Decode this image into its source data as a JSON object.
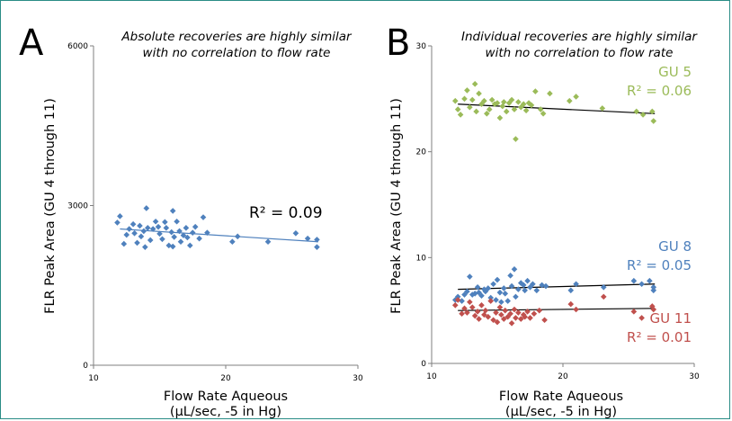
{
  "colors": {
    "blue": "#4f81bd",
    "green": "#9bbb59",
    "red": "#c0504d",
    "fit_black": "#000000",
    "frame": "#2a8c86"
  },
  "chart_data": [
    {
      "type": "scatter",
      "panel": "A",
      "subtitle_line1": "Absolute recoveries are highly similar",
      "subtitle_line2": "with no correlation to flow rate",
      "xlabel_line1": "Flow Rate Aqueous",
      "xlabel_line2": "(μL/sec, -5 in Hg)",
      "ylabel": "FLR Peak Area (GU 4 through 11)",
      "xlim": [
        10,
        30
      ],
      "ylim": [
        0,
        6000
      ],
      "xticks": [
        "10",
        "20",
        "30"
      ],
      "yticks": [
        "0",
        "3000",
        "6000"
      ],
      "grid": false,
      "series": [
        {
          "color": "#4f81bd",
          "annotation": "R² = 0.09",
          "fit": [
            [
              12,
              2560
            ],
            [
              27,
              2320
            ]
          ],
          "points": [
            [
              12.0,
              2800
            ],
            [
              11.8,
              2680
            ],
            [
              12.3,
              2280
            ],
            [
              12.5,
              2450
            ],
            [
              12.7,
              2560
            ],
            [
              13.0,
              2650
            ],
            [
              13.1,
              2480
            ],
            [
              13.3,
              2300
            ],
            [
              13.5,
              2620
            ],
            [
              13.6,
              2420
            ],
            [
              13.8,
              2520
            ],
            [
              14.0,
              2950
            ],
            [
              14.1,
              2580
            ],
            [
              14.3,
              2350
            ],
            [
              14.5,
              2560
            ],
            [
              14.7,
              2700
            ],
            [
              14.9,
              2600
            ],
            [
              15.0,
              2470
            ],
            [
              15.2,
              2370
            ],
            [
              15.4,
              2690
            ],
            [
              15.5,
              2580
            ],
            [
              15.7,
              2250
            ],
            [
              15.9,
              2500
            ],
            [
              16.0,
              2900
            ],
            [
              16.1,
              2410
            ],
            [
              16.3,
              2700
            ],
            [
              16.5,
              2520
            ],
            [
              16.6,
              2320
            ],
            [
              16.8,
              2440
            ],
            [
              17.0,
              2580
            ],
            [
              17.1,
              2400
            ],
            [
              17.3,
              2250
            ],
            [
              17.5,
              2490
            ],
            [
              17.7,
              2600
            ],
            [
              18.0,
              2380
            ],
            [
              18.3,
              2780
            ],
            [
              18.6,
              2490
            ],
            [
              20.5,
              2320
            ],
            [
              20.9,
              2420
            ],
            [
              23.2,
              2320
            ],
            [
              25.3,
              2480
            ],
            [
              26.2,
              2380
            ],
            [
              26.9,
              2360
            ],
            [
              26.9,
              2220
            ],
            [
              16.0,
              2230
            ],
            [
              13.9,
              2220
            ]
          ]
        }
      ]
    },
    {
      "type": "scatter",
      "panel": "B",
      "subtitle_line1": "Individual recoveries are highly similar",
      "subtitle_line2": "with no correlation to flow rate",
      "xlabel_line1": "Flow Rate Aqueous",
      "xlabel_line2": "(μL/sec, -5 in Hg)",
      "ylabel": "FLR Peak Area (GU 4 through 11)",
      "xlim": [
        10,
        30
      ],
      "ylim": [
        0,
        30
      ],
      "xticks": [
        "10",
        "20",
        "30"
      ],
      "yticks": [
        "0",
        "10",
        "20",
        "30"
      ],
      "grid": false,
      "series": [
        {
          "name": "GU 5",
          "color": "#9bbb59",
          "annotation": "R² = 0.06",
          "fit": [
            [
              12,
              24.5
            ],
            [
              27,
              23.6
            ]
          ],
          "points": [
            [
              11.8,
              24.8
            ],
            [
              12.0,
              24.0
            ],
            [
              12.2,
              23.5
            ],
            [
              12.5,
              25.0
            ],
            [
              12.7,
              25.8
            ],
            [
              12.9,
              24.2
            ],
            [
              13.1,
              24.9
            ],
            [
              13.3,
              26.4
            ],
            [
              13.4,
              23.8
            ],
            [
              13.6,
              25.5
            ],
            [
              13.8,
              24.5
            ],
            [
              14.0,
              24.8
            ],
            [
              14.2,
              23.6
            ],
            [
              14.4,
              24.0
            ],
            [
              14.6,
              24.9
            ],
            [
              14.8,
              24.5
            ],
            [
              15.0,
              24.6
            ],
            [
              15.2,
              23.2
            ],
            [
              15.4,
              24.3
            ],
            [
              15.5,
              24.7
            ],
            [
              15.7,
              23.8
            ],
            [
              15.9,
              24.6
            ],
            [
              16.1,
              24.9
            ],
            [
              16.3,
              24.0
            ],
            [
              16.4,
              21.2
            ],
            [
              16.6,
              24.7
            ],
            [
              16.8,
              24.2
            ],
            [
              17.0,
              24.5
            ],
            [
              17.2,
              23.9
            ],
            [
              17.4,
              24.6
            ],
            [
              17.6,
              24.4
            ],
            [
              17.9,
              25.7
            ],
            [
              18.3,
              24.0
            ],
            [
              18.5,
              23.6
            ],
            [
              19.0,
              25.5
            ],
            [
              20.5,
              24.8
            ],
            [
              21.0,
              25.2
            ],
            [
              23.0,
              24.1
            ],
            [
              25.6,
              23.8
            ],
            [
              26.1,
              23.5
            ],
            [
              26.8,
              23.8
            ],
            [
              26.9,
              22.9
            ]
          ]
        },
        {
          "name": "GU 8",
          "color": "#4f81bd",
          "annotation": "R² = 0.05",
          "fit": [
            [
              12,
              7.0
            ],
            [
              27,
              7.5
            ]
          ],
          "points": [
            [
              11.8,
              6.0
            ],
            [
              12.0,
              6.3
            ],
            [
              12.3,
              5.9
            ],
            [
              12.5,
              6.5
            ],
            [
              12.7,
              6.8
            ],
            [
              12.9,
              8.2
            ],
            [
              13.1,
              6.5
            ],
            [
              13.3,
              6.6
            ],
            [
              13.5,
              7.2
            ],
            [
              13.6,
              6.7
            ],
            [
              13.8,
              6.4
            ],
            [
              14.0,
              7.0
            ],
            [
              14.1,
              6.8
            ],
            [
              14.3,
              7.1
            ],
            [
              14.5,
              6.2
            ],
            [
              14.7,
              7.5
            ],
            [
              14.9,
              6.0
            ],
            [
              15.0,
              7.9
            ],
            [
              15.2,
              6.7
            ],
            [
              15.3,
              5.8
            ],
            [
              15.5,
              7.1
            ],
            [
              15.6,
              6.6
            ],
            [
              15.8,
              5.9
            ],
            [
              16.0,
              8.3
            ],
            [
              16.1,
              7.3
            ],
            [
              16.3,
              8.9
            ],
            [
              16.4,
              6.3
            ],
            [
              16.6,
              7.0
            ],
            [
              16.8,
              7.6
            ],
            [
              17.0,
              7.4
            ],
            [
              17.1,
              6.9
            ],
            [
              17.3,
              7.8
            ],
            [
              17.5,
              7.2
            ],
            [
              17.7,
              7.5
            ],
            [
              18.0,
              6.9
            ],
            [
              18.4,
              7.4
            ],
            [
              18.7,
              7.3
            ],
            [
              20.6,
              6.9
            ],
            [
              21.0,
              7.5
            ],
            [
              23.1,
              7.2
            ],
            [
              25.4,
              7.8
            ],
            [
              26.0,
              7.5
            ],
            [
              26.6,
              7.8
            ],
            [
              26.9,
              6.9
            ],
            [
              26.9,
              7.2
            ]
          ]
        },
        {
          "name": "GU 11",
          "color": "#c0504d",
          "annotation": "R² = 0.01",
          "fit": [
            [
              12,
              5.0
            ],
            [
              27,
              5.2
            ]
          ],
          "points": [
            [
              11.8,
              5.5
            ],
            [
              12.0,
              6.0
            ],
            [
              12.3,
              4.7
            ],
            [
              12.5,
              5.2
            ],
            [
              12.7,
              4.8
            ],
            [
              12.9,
              5.8
            ],
            [
              13.1,
              5.3
            ],
            [
              13.3,
              4.5
            ],
            [
              13.5,
              4.9
            ],
            [
              13.6,
              4.2
            ],
            [
              13.8,
              5.5
            ],
            [
              14.0,
              4.6
            ],
            [
              14.1,
              5.0
            ],
            [
              14.3,
              4.4
            ],
            [
              14.5,
              5.9
            ],
            [
              14.7,
              4.1
            ],
            [
              14.9,
              4.8
            ],
            [
              15.0,
              3.9
            ],
            [
              15.2,
              5.3
            ],
            [
              15.3,
              4.6
            ],
            [
              15.5,
              4.2
            ],
            [
              15.6,
              5.0
            ],
            [
              15.8,
              4.4
            ],
            [
              16.0,
              4.7
            ],
            [
              16.1,
              3.8
            ],
            [
              16.3,
              5.1
            ],
            [
              16.4,
              4.3
            ],
            [
              16.6,
              4.8
            ],
            [
              16.8,
              4.2
            ],
            [
              17.0,
              4.6
            ],
            [
              17.1,
              4.4
            ],
            [
              17.3,
              4.9
            ],
            [
              17.5,
              4.3
            ],
            [
              17.8,
              4.7
            ],
            [
              18.2,
              5.0
            ],
            [
              18.6,
              4.1
            ],
            [
              20.6,
              5.6
            ],
            [
              21.0,
              5.1
            ],
            [
              23.1,
              6.3
            ],
            [
              25.4,
              4.9
            ],
            [
              26.0,
              4.3
            ],
            [
              26.8,
              5.4
            ],
            [
              26.9,
              5.1
            ]
          ]
        }
      ]
    }
  ]
}
